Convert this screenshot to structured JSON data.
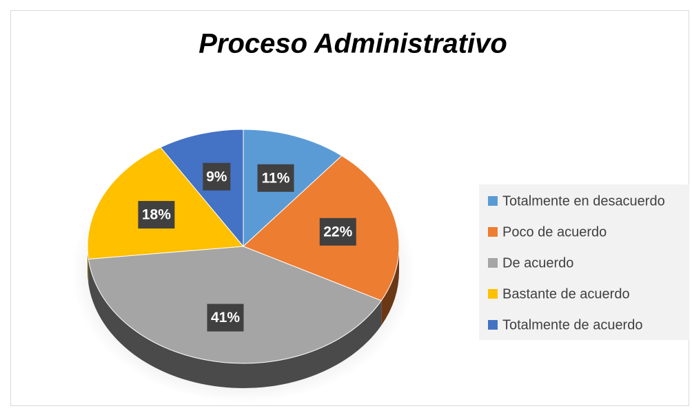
{
  "chart_data": {
    "type": "pie",
    "title": "Proceso Administrativo",
    "categories": [
      "Totalmente en desacuerdo",
      "Poco de acuerdo",
      "De acuerdo",
      "Bastante de acuerdo",
      "Totalmente de acuerdo"
    ],
    "values": [
      11,
      22,
      41,
      18,
      9
    ],
    "value_labels": [
      "11%",
      "22%",
      "41%",
      "18%",
      "9%"
    ],
    "colors": [
      "#5b9bd5",
      "#ed7d31",
      "#a5a5a5",
      "#ffc000",
      "#4472c4"
    ],
    "legend": "right"
  }
}
